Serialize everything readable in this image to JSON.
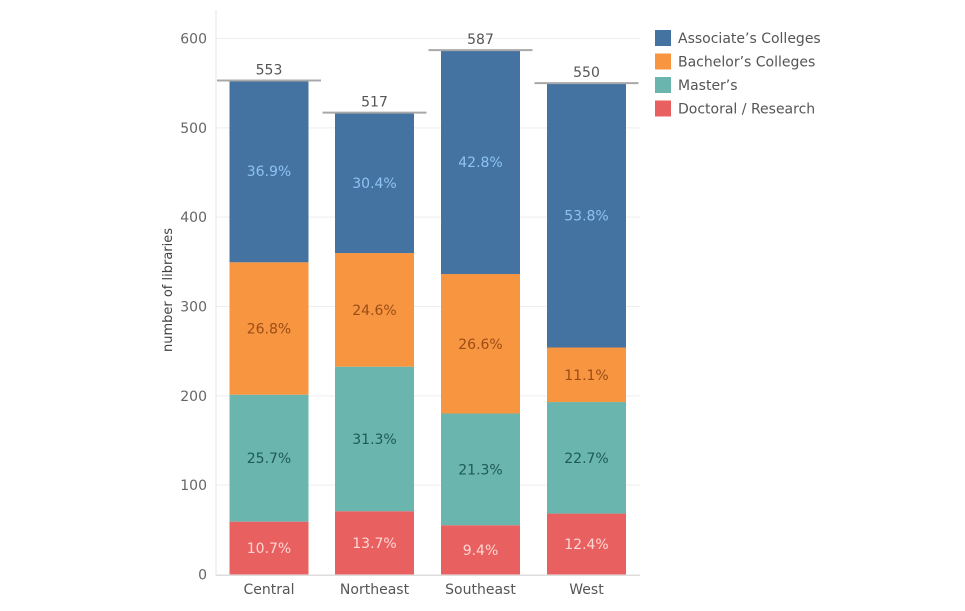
{
  "chart_data": {
    "type": "bar",
    "stacked": true,
    "title": "",
    "xlabel": "",
    "ylabel": "number of libraries",
    "ylim": [
      0,
      600
    ],
    "yticks": [
      0,
      100,
      200,
      300,
      400,
      500,
      600
    ],
    "grid": true,
    "legend_position": "top-right",
    "categories": [
      "Central",
      "Northeast",
      "Southeast",
      "West"
    ],
    "totals": [
      553,
      517,
      587,
      550
    ],
    "series": [
      {
        "name": "Doctoral / Research",
        "color": "#e8605f",
        "label_color": "#ffd6d4",
        "percent": [
          10.7,
          13.7,
          9.4,
          12.4
        ]
      },
      {
        "name": "Master’s",
        "color": "#6bb5af",
        "label_color": "#1d5a55",
        "percent": [
          25.7,
          31.3,
          21.3,
          22.7
        ]
      },
      {
        "name": "Bachelor’s Colleges",
        "color": "#f89540",
        "label_color": "#9a4d16",
        "percent": [
          26.8,
          24.6,
          26.6,
          11.1
        ]
      },
      {
        "name": "Associate’s Colleges",
        "color": "#4473a1",
        "label_color": "#8ec3f0",
        "percent": [
          36.9,
          30.4,
          42.8,
          53.8
        ]
      }
    ],
    "legend_order": [
      "Associate’s Colleges",
      "Bachelor’s Colleges",
      "Master’s",
      "Doctoral / Research"
    ]
  }
}
